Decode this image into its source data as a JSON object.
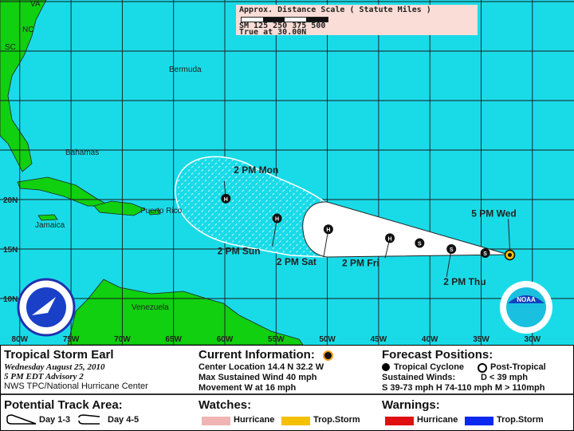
{
  "storm": {
    "name": "Tropical Storm Earl",
    "date": "Wednesday August 25, 2010",
    "advisory": "5 PM EDT Advisory 2",
    "agency": "NWS TPC/National Hurricane Center"
  },
  "current_info": {
    "title": "Current Information:",
    "center_location": "Center Location 14.4 N  32.2 W",
    "max_wind": "Max Sustained Wind  40 mph",
    "movement": "Movement W at  16 mph"
  },
  "forecast_positions": {
    "title": "Forecast Positions:",
    "tropical": "Tropical Cyclone",
    "post_tropical": "Post-Tropical",
    "sustained": "Sustained Winds:",
    "d_key": "D  < 39 mph",
    "shm_key": "S  39-73 mph  H  74-110 mph  M  > 110mph"
  },
  "track_area": {
    "title": "Potential Track Area:",
    "day13": "Day 1-3",
    "day45": "Day 4-5"
  },
  "watches": {
    "title": "Watches:",
    "hurricane": "Hurricane",
    "trop_storm": "Trop.Storm",
    "hurricane_color": "#f0b4b4",
    "trop_storm_color": "#f5c000"
  },
  "warnings": {
    "title": "Warnings:",
    "hurricane": "Hurricane",
    "trop_storm": "Trop.Storm",
    "hurricane_color": "#e01010",
    "trop_storm_color": "#0a28f0"
  },
  "scale": {
    "title": "Approx. Distance Scale ( Statute Miles )",
    "ticks": "SM 125 250 375 500",
    "note": "True at 30.00N"
  },
  "map": {
    "ocean_color": "#19dbe8",
    "land_color": "#10d010",
    "lon_labels": [
      "80W",
      "75W",
      "70W",
      "65W",
      "60W",
      "55W",
      "50W",
      "45W",
      "40W",
      "35W",
      "30W"
    ],
    "lat_labels": [
      "20N",
      "15N",
      "10N"
    ],
    "places": {
      "VA": "VA",
      "NC": "NC",
      "SC": "SC",
      "bermuda": "Bermuda",
      "bahamas": "Bahamas",
      "jamaica": "Jamaica",
      "puerto_rico": "Puerto Rico",
      "venezuela": "Venezuela"
    },
    "logos": {
      "left": "NWS",
      "right": "NOAA"
    }
  },
  "track": [
    {
      "label": "",
      "lat": 14.4,
      "lon": 32.2,
      "type": "current"
    },
    {
      "label": "",
      "lat": 14.6,
      "lon": 34.6,
      "type": "S"
    },
    {
      "label": "2 PM Thu",
      "lat": 15.0,
      "lon": 37.9,
      "type": "S"
    },
    {
      "label": "",
      "lat": 15.6,
      "lon": 41.0,
      "type": "S"
    },
    {
      "label": "2 PM Fri",
      "lat": 16.1,
      "lon": 43.9,
      "type": "H"
    },
    {
      "label": "2 PM Sat",
      "lat": 17.0,
      "lon": 49.9,
      "type": "H"
    },
    {
      "label": "2 PM Sun",
      "lat": 18.1,
      "lon": 54.9,
      "type": "H"
    },
    {
      "label": "2 PM Mon",
      "lat": 20.1,
      "lon": 59.9,
      "type": "H"
    }
  ],
  "current_label": "5 PM Wed"
}
